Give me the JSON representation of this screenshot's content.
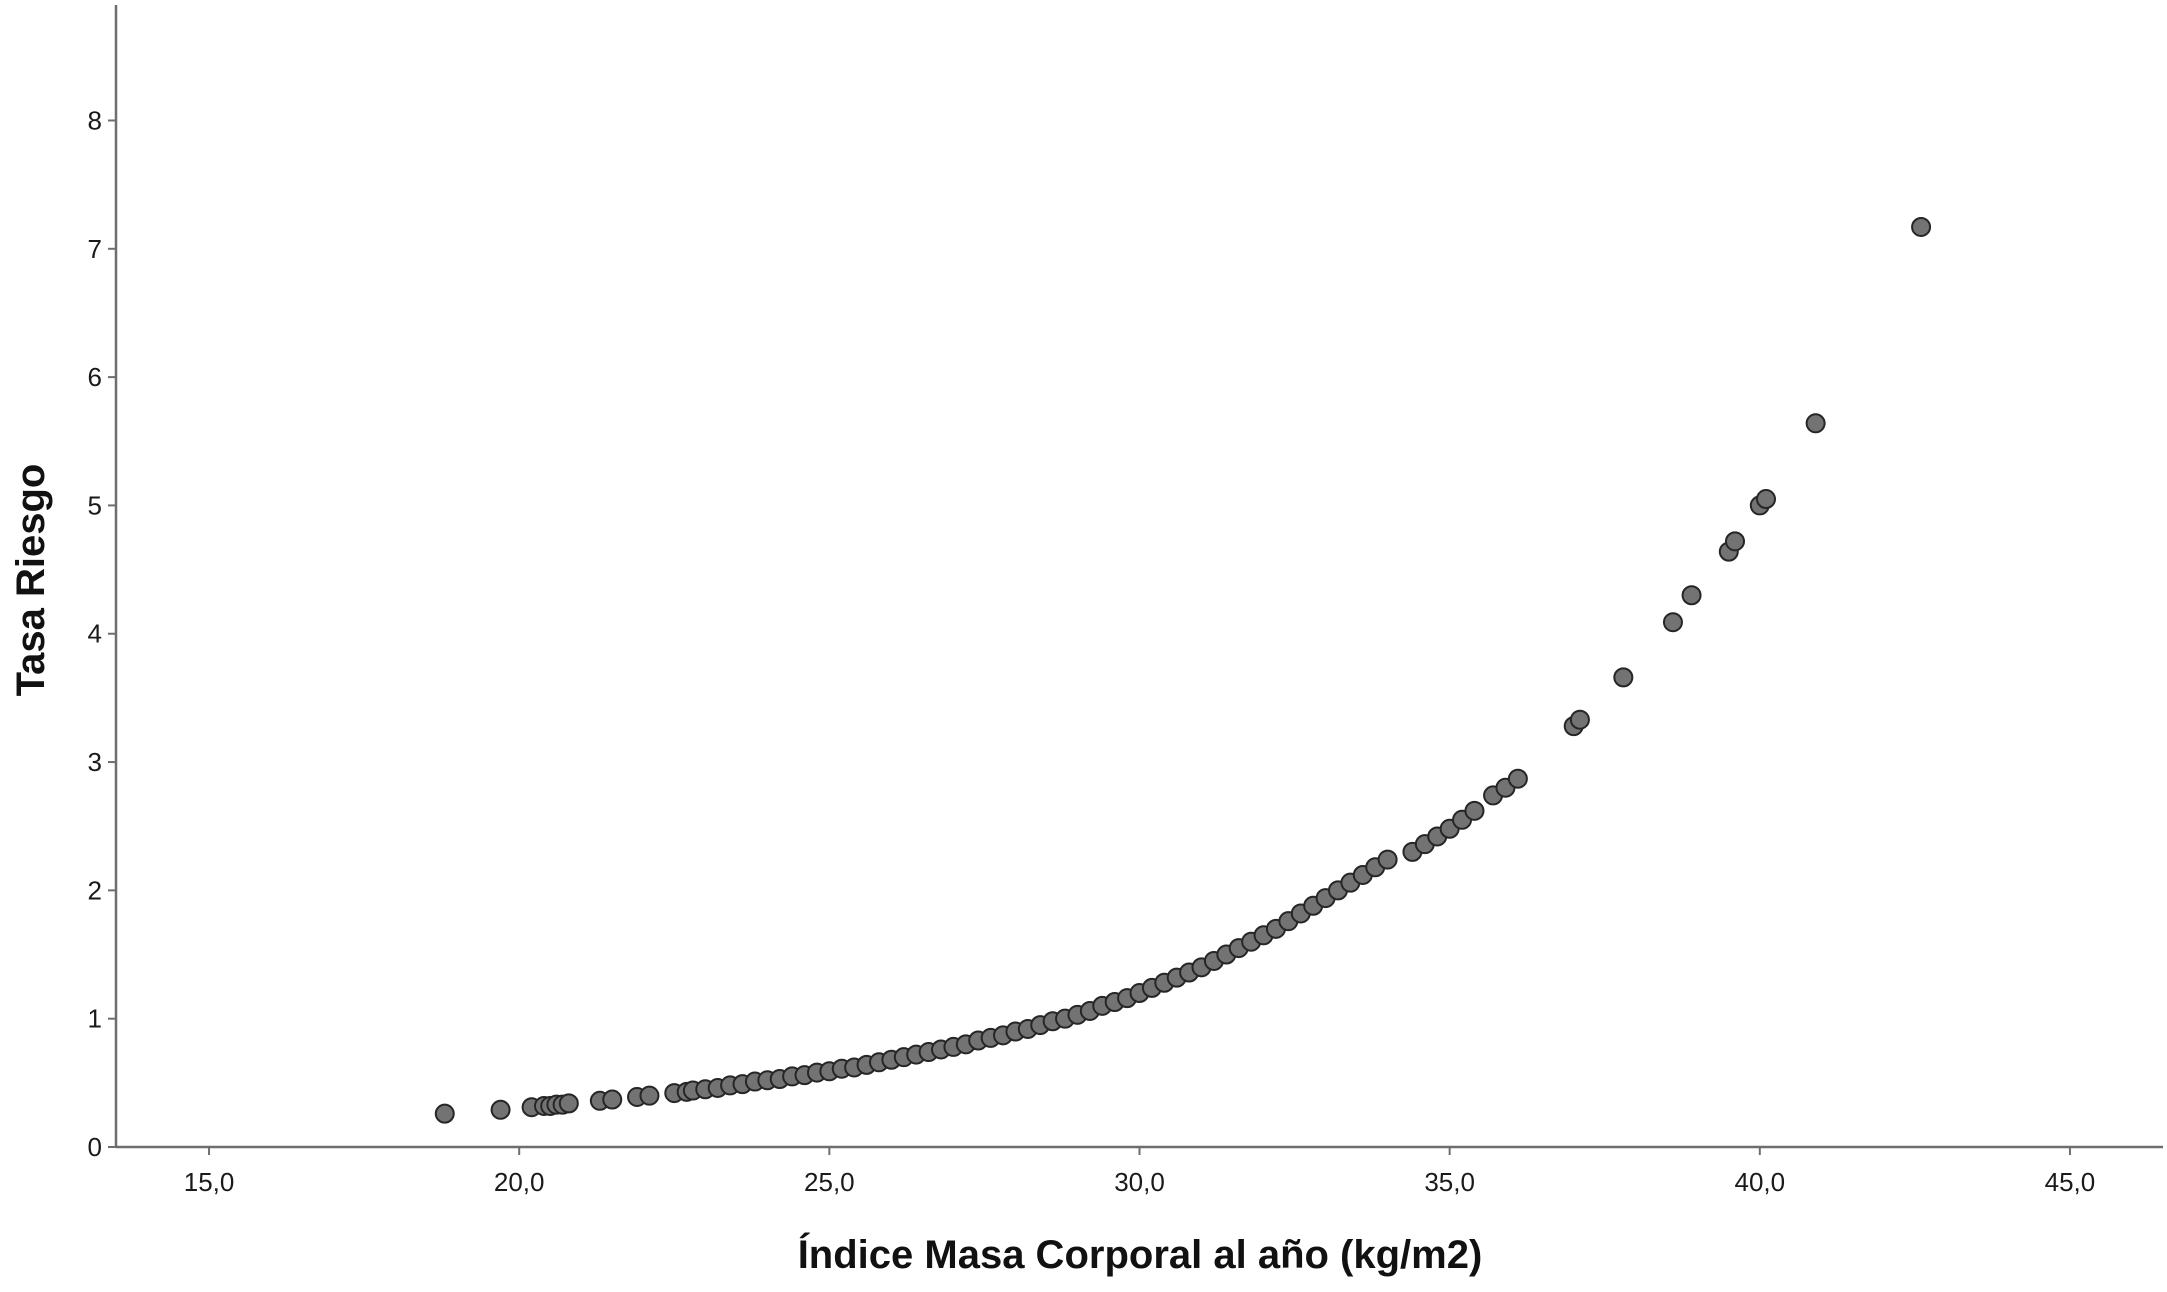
{
  "chart_data": {
    "type": "scatter",
    "title": "",
    "xlabel": "Índice Masa Corporal al año (kg/m2)",
    "ylabel": "Tasa Riesgo",
    "xlim": [
      13.5,
      46.5
    ],
    "ylim": [
      0,
      8.9
    ],
    "x_ticks": [
      15,
      20,
      25,
      30,
      35,
      40,
      45
    ],
    "x_tick_labels": [
      "15,0",
      "20,0",
      "25,0",
      "30,0",
      "35,0",
      "40,0",
      "45,0"
    ],
    "y_ticks": [
      0,
      1,
      2,
      3,
      4,
      5,
      6,
      7,
      8
    ],
    "y_tick_labels": [
      "0",
      "1",
      "2",
      "3",
      "4",
      "5",
      "6",
      "7",
      "8"
    ],
    "grid": false,
    "legend": "none",
    "colors": {
      "marker_fill": "#737373",
      "marker_edge": "#262626",
      "axis": "#6e6e6e"
    },
    "points": [
      [
        18.8,
        0.26
      ],
      [
        19.7,
        0.29
      ],
      [
        20.2,
        0.31
      ],
      [
        20.4,
        0.32
      ],
      [
        20.5,
        0.32
      ],
      [
        20.6,
        0.33
      ],
      [
        20.7,
        0.33
      ],
      [
        20.8,
        0.34
      ],
      [
        21.3,
        0.36
      ],
      [
        21.5,
        0.37
      ],
      [
        21.9,
        0.39
      ],
      [
        22.1,
        0.4
      ],
      [
        22.5,
        0.42
      ],
      [
        22.7,
        0.43
      ],
      [
        22.8,
        0.44
      ],
      [
        23.0,
        0.45
      ],
      [
        23.2,
        0.46
      ],
      [
        23.4,
        0.48
      ],
      [
        23.6,
        0.49
      ],
      [
        23.8,
        0.51
      ],
      [
        24.0,
        0.52
      ],
      [
        24.2,
        0.53
      ],
      [
        24.4,
        0.55
      ],
      [
        24.6,
        0.56
      ],
      [
        24.8,
        0.58
      ],
      [
        25.0,
        0.59
      ],
      [
        25.2,
        0.61
      ],
      [
        25.4,
        0.62
      ],
      [
        25.6,
        0.64
      ],
      [
        25.8,
        0.66
      ],
      [
        26.0,
        0.68
      ],
      [
        26.2,
        0.7
      ],
      [
        26.4,
        0.72
      ],
      [
        26.6,
        0.74
      ],
      [
        26.8,
        0.76
      ],
      [
        27.0,
        0.78
      ],
      [
        27.2,
        0.8
      ],
      [
        27.4,
        0.83
      ],
      [
        27.6,
        0.85
      ],
      [
        27.8,
        0.87
      ],
      [
        28.0,
        0.9
      ],
      [
        28.2,
        0.92
      ],
      [
        28.4,
        0.95
      ],
      [
        28.6,
        0.98
      ],
      [
        28.8,
        1.0
      ],
      [
        29.0,
        1.03
      ],
      [
        29.2,
        1.06
      ],
      [
        29.4,
        1.1
      ],
      [
        29.6,
        1.13
      ],
      [
        29.8,
        1.16
      ],
      [
        30.0,
        1.2
      ],
      [
        30.2,
        1.24
      ],
      [
        30.4,
        1.28
      ],
      [
        30.6,
        1.32
      ],
      [
        30.8,
        1.36
      ],
      [
        31.0,
        1.4
      ],
      [
        31.2,
        1.45
      ],
      [
        31.4,
        1.5
      ],
      [
        31.6,
        1.55
      ],
      [
        31.8,
        1.6
      ],
      [
        32.0,
        1.65
      ],
      [
        32.2,
        1.7
      ],
      [
        32.4,
        1.76
      ],
      [
        32.6,
        1.82
      ],
      [
        32.8,
        1.88
      ],
      [
        33.0,
        1.94
      ],
      [
        33.2,
        2.0
      ],
      [
        33.4,
        2.06
      ],
      [
        33.6,
        2.12
      ],
      [
        33.8,
        2.18
      ],
      [
        34.0,
        2.24
      ],
      [
        34.4,
        2.3
      ],
      [
        34.6,
        2.36
      ],
      [
        34.8,
        2.42
      ],
      [
        35.0,
        2.48
      ],
      [
        35.2,
        2.55
      ],
      [
        35.4,
        2.62
      ],
      [
        35.7,
        2.74
      ],
      [
        35.9,
        2.8
      ],
      [
        36.1,
        2.87
      ],
      [
        37.0,
        3.28
      ],
      [
        37.1,
        3.33
      ],
      [
        37.8,
        3.66
      ],
      [
        38.6,
        4.09
      ],
      [
        38.9,
        4.3
      ],
      [
        39.5,
        4.64
      ],
      [
        39.6,
        4.72
      ],
      [
        40.0,
        5.0
      ],
      [
        40.1,
        5.05
      ],
      [
        40.9,
        5.64
      ],
      [
        42.6,
        7.17
      ]
    ]
  }
}
